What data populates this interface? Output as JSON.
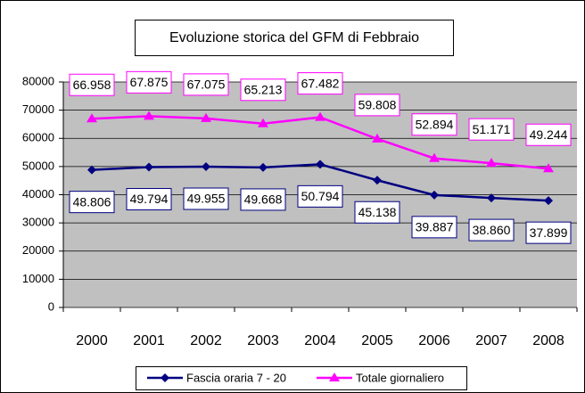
{
  "chart_data": {
    "type": "line",
    "title": "Evoluzione storica del GFM di Febbraio",
    "categories": [
      "2000",
      "2001",
      "2002",
      "2003",
      "2004",
      "2005",
      "2006",
      "2007",
      "2008"
    ],
    "series": [
      {
        "name": "Fascia oraria 7 - 20",
        "color": "#000080",
        "marker": "diamond",
        "label_position": "below",
        "values": [
          48806,
          49794,
          49955,
          49668,
          50794,
          45138,
          39887,
          38860,
          37899
        ],
        "value_labels": [
          "48.806",
          "49.794",
          "49.955",
          "49.668",
          "50.794",
          "45.138",
          "39.887",
          "38.860",
          "37.899"
        ]
      },
      {
        "name": "Totale giornaliero",
        "color": "#ff00ff",
        "marker": "triangle",
        "label_position": "above",
        "values": [
          66958,
          67875,
          67075,
          65213,
          67482,
          59808,
          52894,
          51171,
          49244
        ],
        "value_labels": [
          "66.958",
          "67.875",
          "67.075",
          "65.213",
          "67.482",
          "59.808",
          "52.894",
          "51.171",
          "49.244"
        ]
      }
    ],
    "ylim": [
      0,
      80000
    ],
    "yticks": [
      0,
      10000,
      20000,
      30000,
      40000,
      50000,
      60000,
      70000,
      80000
    ],
    "grid": true,
    "plot_background": "#c0c0c0",
    "legend": "bottom"
  }
}
